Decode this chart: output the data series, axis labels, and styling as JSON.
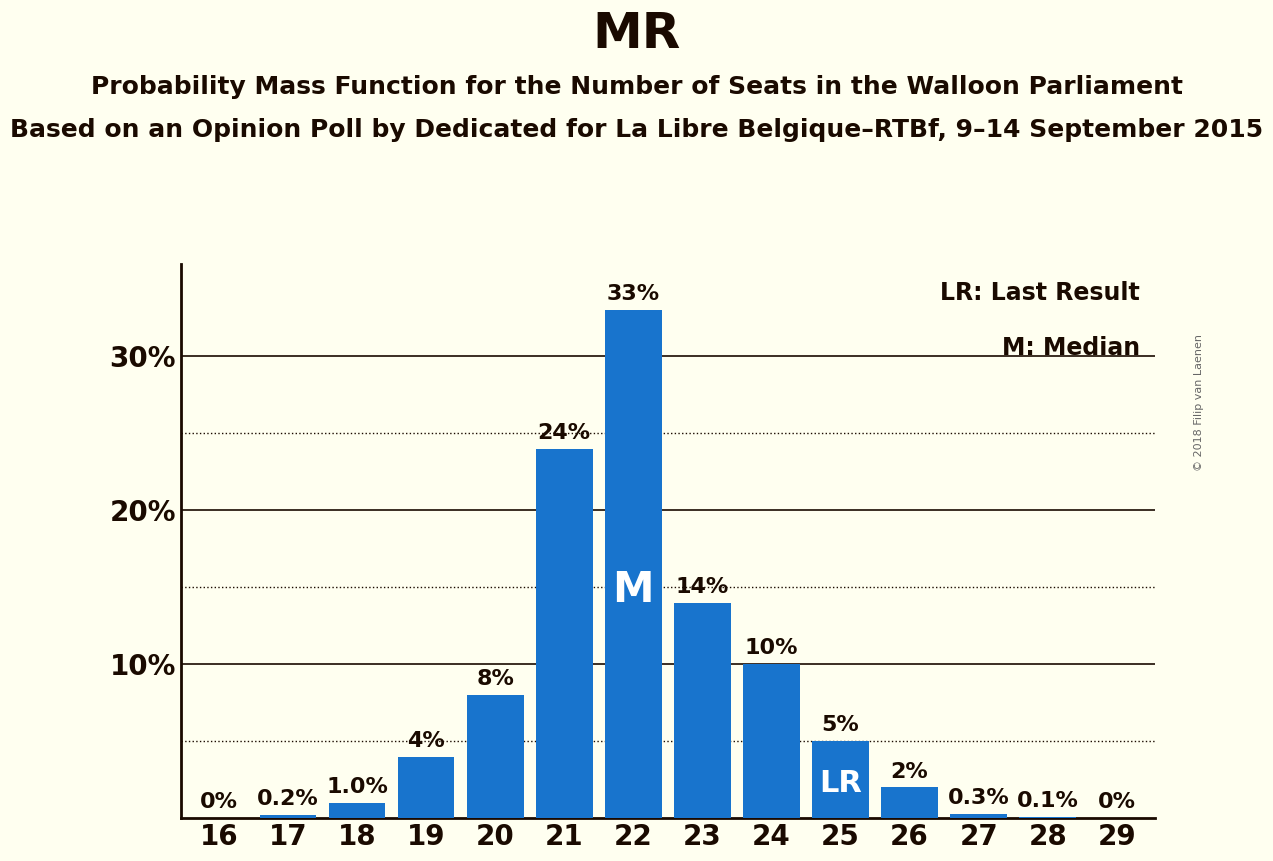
{
  "title": "MR",
  "subtitle1": "Probability Mass Function for the Number of Seats in the Walloon Parliament",
  "subtitle2": "Based on an Opinion Poll by Dedicated for La Libre Belgique–RTBf, 9–14 September 2015",
  "copyright": "© 2018 Filip van Laenen",
  "seats": [
    16,
    17,
    18,
    19,
    20,
    21,
    22,
    23,
    24,
    25,
    26,
    27,
    28,
    29
  ],
  "probabilities": [
    0.0,
    0.2,
    1.0,
    4.0,
    8.0,
    24.0,
    33.0,
    14.0,
    10.0,
    5.0,
    2.0,
    0.3,
    0.1,
    0.0
  ],
  "labels": [
    "0%",
    "0.2%",
    "1.0%",
    "4%",
    "8%",
    "24%",
    "33%",
    "14%",
    "10%",
    "5%",
    "2%",
    "0.3%",
    "0.1%",
    "0%"
  ],
  "bar_color": "#1874CD",
  "background_color": "#FFFFF0",
  "text_color": "#1a0a00",
  "median_seat": 22,
  "lr_seat": 25,
  "solid_lines": [
    10,
    20,
    30
  ],
  "dotted_lines": [
    5,
    15,
    25
  ],
  "title_fontsize": 36,
  "subtitle_fontsize": 18,
  "bar_label_fontsize": 16,
  "axis_fontsize": 20,
  "legend_fontsize": 17,
  "ylim": [
    0,
    36
  ],
  "xlim": [
    15.45,
    29.55
  ],
  "bar_width": 0.82
}
